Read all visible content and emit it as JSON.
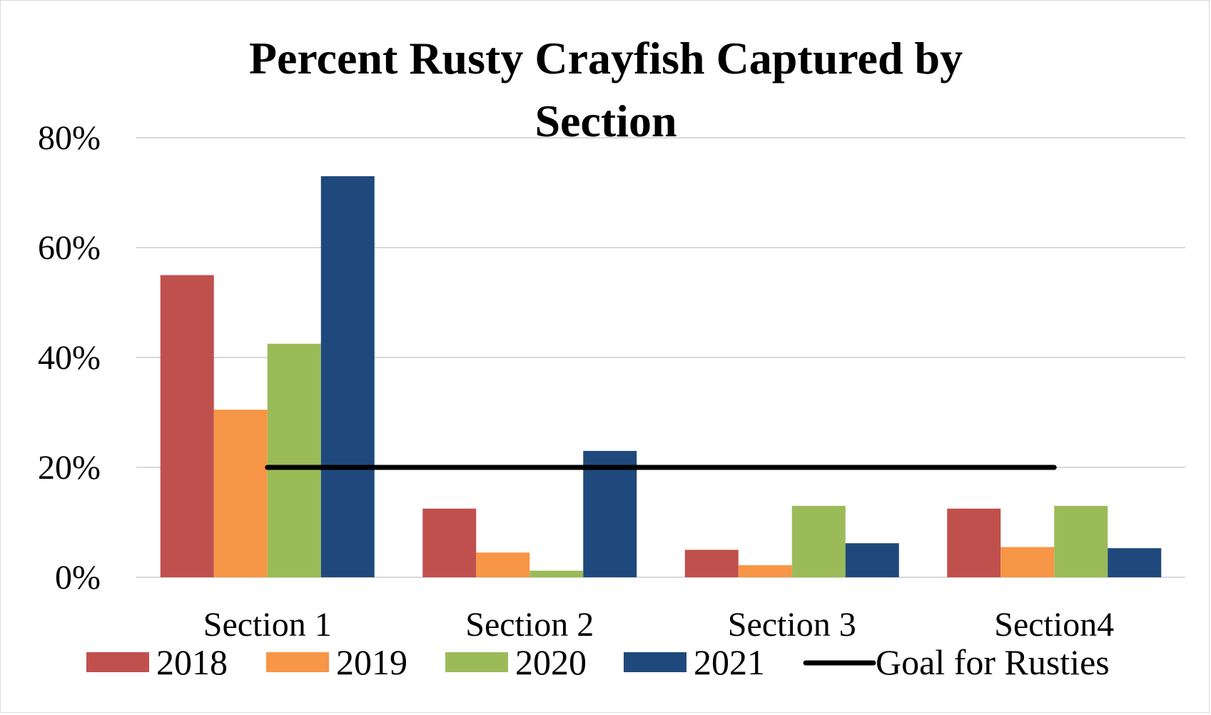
{
  "chart_data": {
    "type": "bar",
    "title_lines": [
      "Percent Rusty Crayfish Captured by",
      "Section"
    ],
    "categories": [
      "Section 1",
      "Section 2",
      "Section 3",
      "Section4"
    ],
    "series": [
      {
        "name": "2018",
        "color": "#c0504d",
        "values": [
          55,
          12.5,
          5,
          12.5
        ]
      },
      {
        "name": "2019",
        "color": "#f79646",
        "values": [
          30.5,
          4.5,
          2.2,
          5.5
        ]
      },
      {
        "name": "2020",
        "color": "#9bbb59",
        "values": [
          42.5,
          1.2,
          13,
          13
        ]
      },
      {
        "name": "2021",
        "color": "#1f497d",
        "values": [
          73,
          23,
          6.2,
          5.3
        ]
      }
    ],
    "goal_line": {
      "name": "Goal for Rusties",
      "value": 20,
      "color": "#000000"
    },
    "yticks": [
      "0%",
      "20%",
      "40%",
      "60%",
      "80%"
    ],
    "ytick_values": [
      0,
      20,
      40,
      60,
      80
    ],
    "ylim": [
      0,
      80
    ],
    "xlabel": "",
    "ylabel": "",
    "grid": true,
    "legend_position": "bottom"
  }
}
